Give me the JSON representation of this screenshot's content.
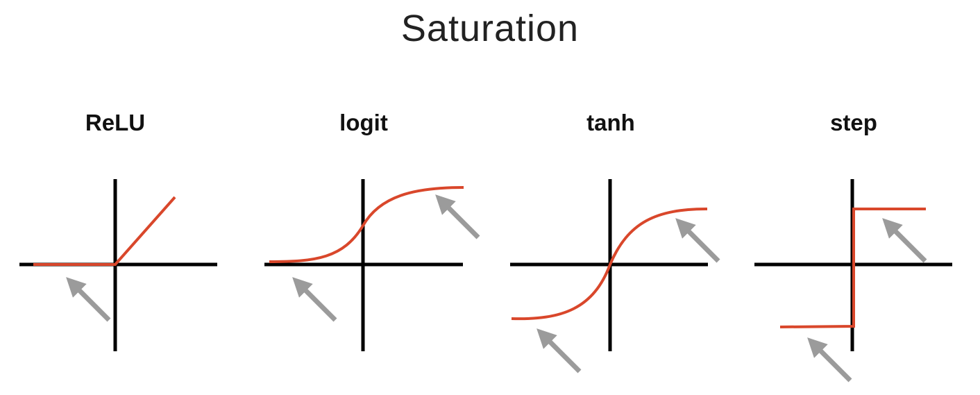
{
  "title": "Saturation",
  "colors": {
    "curve": "#d9472b",
    "axes": "#000000",
    "arrow": "#9b9b9b"
  },
  "plots": [
    {
      "name": "relu",
      "label": "ReLU",
      "function": "relu"
    },
    {
      "name": "logit",
      "label": "logit",
      "function": "sigmoid"
    },
    {
      "name": "tanh",
      "label": "tanh",
      "function": "tanh"
    },
    {
      "name": "step",
      "label": "step",
      "function": "step"
    }
  ],
  "arrow_icon": "saturation-arrow-icon"
}
